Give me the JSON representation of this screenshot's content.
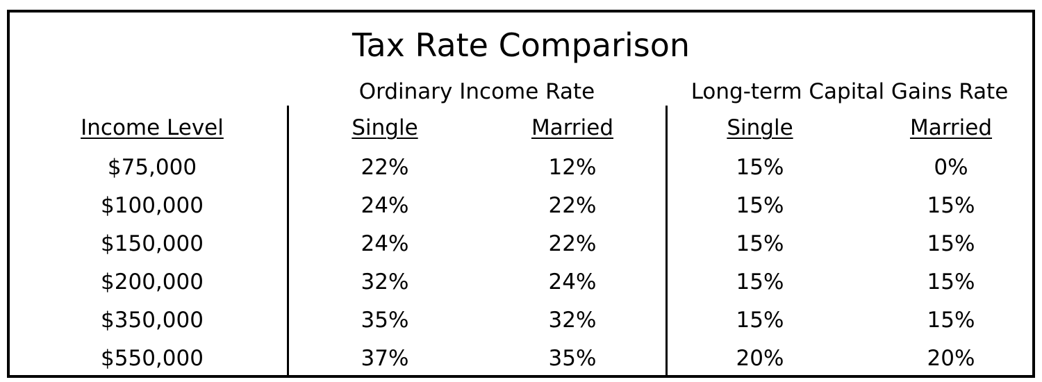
{
  "title": "Tax Rate Comparison",
  "groups": {
    "ordinary": "Ordinary Income Rate",
    "capital_gains": "Long-term Capital Gains Rate"
  },
  "headers": {
    "income_level": "Income Level",
    "ordinary_single": "Single",
    "ordinary_married": "Married",
    "capital_single": "Single",
    "capital_married": "Married"
  },
  "rows": [
    {
      "income": "$75,000",
      "ord_single": "22%",
      "ord_married": "12%",
      "cap_single": "15%",
      "cap_married": "0%"
    },
    {
      "income": "$100,000",
      "ord_single": "24%",
      "ord_married": "22%",
      "cap_single": "15%",
      "cap_married": "15%"
    },
    {
      "income": "$150,000",
      "ord_single": "24%",
      "ord_married": "22%",
      "cap_single": "15%",
      "cap_married": "15%"
    },
    {
      "income": "$200,000",
      "ord_single": "32%",
      "ord_married": "24%",
      "cap_single": "15%",
      "cap_married": "15%"
    },
    {
      "income": "$350,000",
      "ord_single": "35%",
      "ord_married": "32%",
      "cap_single": "15%",
      "cap_married": "15%"
    },
    {
      "income": "$550,000",
      "ord_single": "37%",
      "ord_married": "35%",
      "cap_single": "20%",
      "cap_married": "20%"
    }
  ]
}
